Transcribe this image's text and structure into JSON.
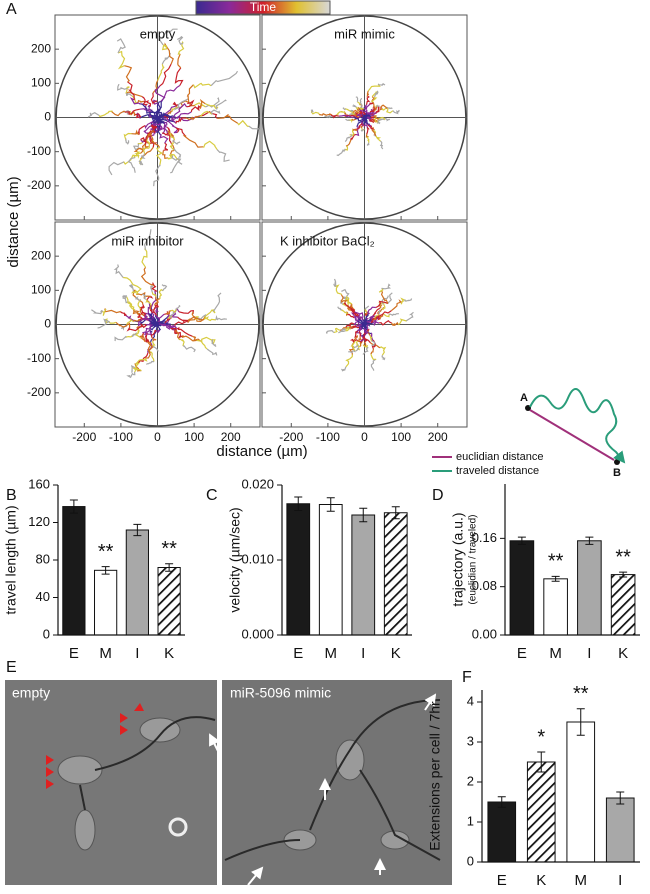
{
  "chart_data": [
    {
      "type": "tracks",
      "panel": "A",
      "colorbar_label": "Time",
      "x_label": "distance (µm)",
      "y_label": "distance (µm)",
      "xlim": [
        -280,
        280
      ],
      "ylim": [
        -300,
        300
      ],
      "xticks": [
        -200,
        -100,
        0,
        100,
        200
      ],
      "yticks": [
        -200,
        -100,
        0,
        100,
        200
      ],
      "subplots": [
        "empty",
        "miR mimic",
        "miR inhibitor",
        "K inhibitor BaCl₂"
      ]
    },
    {
      "type": "bar",
      "panel": "B",
      "y_label": "travel length (µm)",
      "categories": [
        "E",
        "M",
        "I",
        "K"
      ],
      "values": [
        137,
        69,
        112,
        72
      ],
      "errors": [
        7,
        4,
        6,
        4
      ],
      "colors": [
        "#1a1a1a",
        "#ffffff",
        "#a8a8a8",
        "#ffffff"
      ],
      "hatch": [
        false,
        false,
        false,
        true
      ],
      "ylim": [
        0,
        160
      ],
      "yticks": [
        0,
        40,
        80,
        120,
        160
      ],
      "annotations": [
        {
          "index": 1,
          "text": "**"
        },
        {
          "index": 3,
          "text": "**"
        }
      ]
    },
    {
      "type": "bar",
      "panel": "C",
      "y_label": "velocity (µm/sec)",
      "categories": [
        "E",
        "M",
        "I",
        "K"
      ],
      "values": [
        0.0175,
        0.0174,
        0.016,
        0.0163
      ],
      "errors": [
        0.0009,
        0.0009,
        0.0009,
        0.0008
      ],
      "colors": [
        "#1a1a1a",
        "#ffffff",
        "#a8a8a8",
        "#ffffff"
      ],
      "hatch": [
        false,
        false,
        false,
        true
      ],
      "ylim": [
        0,
        0.02
      ],
      "yticks": [
        {
          "value": 0,
          "label": "0.000"
        },
        {
          "value": 0.01,
          "label": "0.010"
        },
        {
          "value": 0.02,
          "label": "0.020"
        }
      ]
    },
    {
      "type": "bar",
      "panel": "D",
      "y_label": "trajectory (a.u.)",
      "y_label_sub": "(euclidian / traveled)",
      "categories": [
        "E",
        "M",
        "I",
        "K"
      ],
      "values": [
        0.156,
        0.093,
        0.156,
        0.1
      ],
      "errors": [
        0.006,
        0.004,
        0.006,
        0.004
      ],
      "colors": [
        "#1a1a1a",
        "#ffffff",
        "#a8a8a8",
        "#ffffff"
      ],
      "hatch": [
        false,
        false,
        false,
        true
      ],
      "ylim": [
        0,
        0.25
      ],
      "yticks": [
        {
          "value": 0,
          "label": "0.00"
        },
        {
          "value": 0.08,
          "label": "0.08"
        },
        {
          "value": 0.16,
          "label": "0.16"
        }
      ],
      "annotations": [
        {
          "index": 1,
          "text": "**"
        },
        {
          "index": 3,
          "text": "**"
        }
      ],
      "inset": {
        "point_a": "A",
        "point_b": "B",
        "euclidian": "euclidian distance",
        "traveled": "traveled distance"
      }
    },
    {
      "type": "bar",
      "panel": "F",
      "y_label": "Extensions per cell / 7hr",
      "categories": [
        "E",
        "K",
        "M",
        "I"
      ],
      "values": [
        1.5,
        2.5,
        3.5,
        1.6
      ],
      "errors": [
        0.13,
        0.25,
        0.33,
        0.15
      ],
      "colors": [
        "#1a1a1a",
        "#ffffff",
        "#ffffff",
        "#a8a8a8"
      ],
      "hatch": [
        false,
        true,
        false,
        false
      ],
      "ylim": [
        0,
        4.3
      ],
      "yticks": [
        0,
        1,
        2,
        3,
        4
      ],
      "annotations": [
        {
          "index": 1,
          "text": "*"
        },
        {
          "index": 2,
          "text": "**"
        }
      ]
    }
  ],
  "panel_e": {
    "panel": "E",
    "photos": [
      "empty",
      "miR-5096 mimic"
    ]
  }
}
